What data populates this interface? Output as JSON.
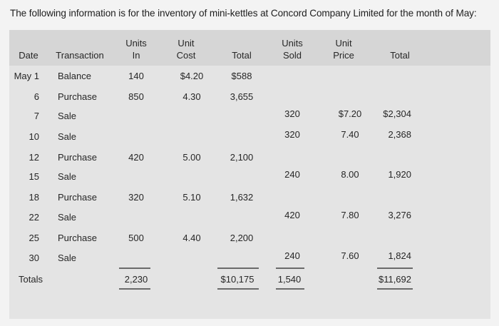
{
  "intro": "The following information is for the inventory of mini-kettles at Concord Company Limited for the month of May:",
  "headers": {
    "date": "Date",
    "transaction": "Transaction",
    "units_in_1": "Units",
    "units_in_2": "In",
    "unit_cost_1": "Unit",
    "unit_cost_2": "Cost",
    "total_1": "Total",
    "units_sold_1": "Units",
    "units_sold_2": "Sold",
    "unit_price_1": "Unit",
    "unit_price_2": "Price",
    "total_2": "Total"
  },
  "rows": [
    {
      "date": "May 1",
      "transaction": "Balance",
      "units_in": "140",
      "unit_cost": "$4.20",
      "total_cost": "$588",
      "units_sold": "",
      "unit_price": "",
      "total_sales": ""
    },
    {
      "date": "6",
      "transaction": "Purchase",
      "units_in": "850",
      "unit_cost": "4.30",
      "total_cost": "3,655",
      "units_sold": "",
      "unit_price": "",
      "total_sales": ""
    },
    {
      "date": "7",
      "transaction": "Sale",
      "units_in": "",
      "unit_cost": "",
      "total_cost": "",
      "units_sold": "320",
      "unit_price": "$7.20",
      "total_sales": "$2,304"
    },
    {
      "date": "10",
      "transaction": "Sale",
      "units_in": "",
      "unit_cost": "",
      "total_cost": "",
      "units_sold": "320",
      "unit_price": "7.40",
      "total_sales": "2,368"
    },
    {
      "date": "12",
      "transaction": "Purchase",
      "units_in": "420",
      "unit_cost": "5.00",
      "total_cost": "2,100",
      "units_sold": "",
      "unit_price": "",
      "total_sales": ""
    },
    {
      "date": "15",
      "transaction": "Sale",
      "units_in": "",
      "unit_cost": "",
      "total_cost": "",
      "units_sold": "240",
      "unit_price": "8.00",
      "total_sales": "1,920"
    },
    {
      "date": "18",
      "transaction": "Purchase",
      "units_in": "320",
      "unit_cost": "5.10",
      "total_cost": "1,632",
      "units_sold": "",
      "unit_price": "",
      "total_sales": ""
    },
    {
      "date": "22",
      "transaction": "Sale",
      "units_in": "",
      "unit_cost": "",
      "total_cost": "",
      "units_sold": "420",
      "unit_price": "7.80",
      "total_sales": "3,276"
    },
    {
      "date": "25",
      "transaction": "Purchase",
      "units_in": "500",
      "unit_cost": "4.40",
      "total_cost": "2,200",
      "units_sold": "",
      "unit_price": "",
      "total_sales": ""
    },
    {
      "date": "30",
      "transaction": "Sale",
      "units_in": "",
      "unit_cost": "",
      "total_cost": "",
      "units_sold": "240",
      "unit_price": "7.60",
      "total_sales": "1,824"
    }
  ],
  "totals": {
    "label": "Totals",
    "units_in": "2,230",
    "total_cost": "$10,175",
    "units_sold": "1,540",
    "total_sales": "$11,692"
  }
}
